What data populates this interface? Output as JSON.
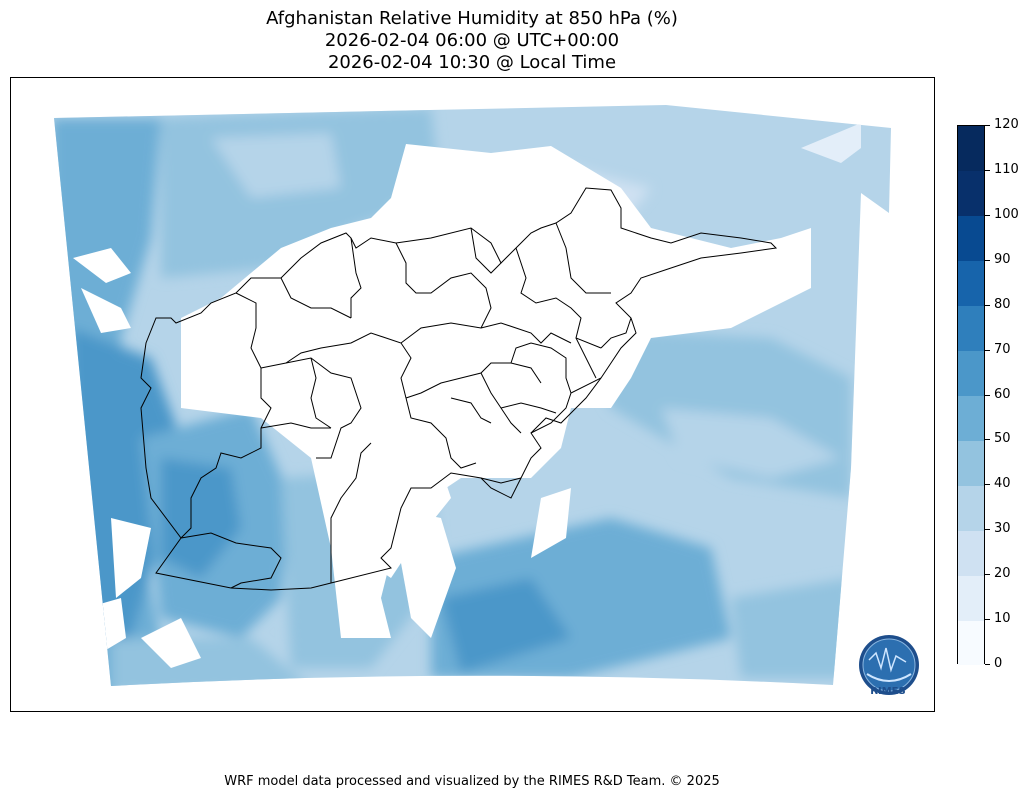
{
  "title": {
    "line1": "Afghanistan Relative Humidity at 850 hPa (%)",
    "line2": "2026-02-04 06:00 @ UTC+00:00",
    "line3": "2026-02-04 10:30 @ Local Time"
  },
  "colorbar": {
    "ticks": [
      "0",
      "10",
      "20",
      "30",
      "40",
      "50",
      "60",
      "70",
      "80",
      "90",
      "100",
      "110",
      "120"
    ],
    "range": [
      0,
      120
    ],
    "colors": [
      "#f7fbff",
      "#e3eef9",
      "#cfe1f2",
      "#b5d4e9",
      "#93c3df",
      "#6daed5",
      "#4b97c9",
      "#2f7fbc",
      "#1764ab",
      "#084a91",
      "#08306b",
      "#062a5e"
    ]
  },
  "map": {
    "region": "Afghanistan",
    "variable": "Relative Humidity at 850 hPa",
    "units": "%",
    "boundaries": "province-outlines"
  },
  "logo": {
    "text": "RIMES"
  },
  "footer": {
    "text": "WRF model data processed and visualized by the RIMES R&D Team. © 2025"
  }
}
